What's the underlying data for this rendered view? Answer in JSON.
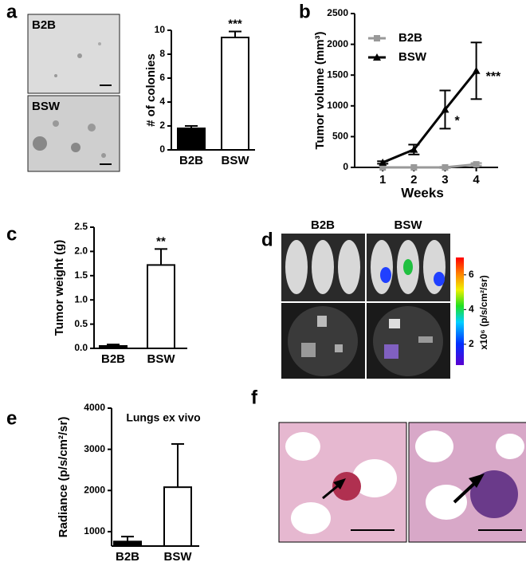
{
  "panel_labels": [
    "a",
    "b",
    "c",
    "d",
    "e",
    "f"
  ],
  "panel_a_images": [
    "B2B",
    "BSW"
  ],
  "panel_d": {
    "columns": [
      "B2B",
      "BSW"
    ],
    "colorbar": {
      "label": "x10⁶ (p/s/cm²/sr)",
      "lim": [
        0.8,
        7
      ],
      "ticks": [
        2,
        4,
        6
      ]
    }
  },
  "chart_data": [
    {
      "type": "bar",
      "ylabel": "# of colonies",
      "categories": [
        "B2B",
        "BSW"
      ],
      "values": [
        1.8,
        9.4
      ],
      "errors": [
        0.2,
        0.5
      ],
      "colors": [
        "#000000",
        "#ffffff"
      ],
      "significance": [
        null,
        "***"
      ],
      "ylim": [
        0,
        10
      ],
      "yticks": [
        0,
        2,
        4,
        6,
        8,
        10
      ]
    },
    {
      "type": "line",
      "ylabel": "Tumor volume (mm³)",
      "xlabel": "Weeks",
      "x": [
        1,
        2,
        3,
        4
      ],
      "xlim": [
        0.1,
        4.7
      ],
      "xticks": [
        1,
        2,
        3,
        4
      ],
      "ylim": [
        0,
        2500
      ],
      "yticks": [
        0,
        500,
        1000,
        1500,
        2000,
        2500
      ],
      "legend": "upper left",
      "series": [
        {
          "name": "B2B",
          "color": "#999999",
          "marker": "square",
          "values": [
            0,
            0,
            0,
            50
          ],
          "errors": [
            0,
            0,
            10,
            20
          ],
          "significance": [
            null,
            null,
            null,
            null
          ]
        },
        {
          "name": "BSW",
          "color": "#000000",
          "marker": "triangle",
          "values": [
            80,
            290,
            940,
            1570
          ],
          "errors": [
            20,
            80,
            310,
            460
          ],
          "significance": [
            null,
            null,
            "*",
            "***"
          ]
        }
      ]
    },
    {
      "type": "bar",
      "ylabel": "Tumor weight (g)",
      "categories": [
        "B2B",
        "BSW"
      ],
      "values": [
        0.05,
        1.72
      ],
      "errors": [
        0.03,
        0.33
      ],
      "colors": [
        "#000000",
        "#ffffff"
      ],
      "significance": [
        null,
        "**"
      ],
      "ylim": [
        0,
        2.5
      ],
      "yticks": [
        {
          "value": 0,
          "label": "0.0"
        },
        0.5,
        {
          "value": 1,
          "label": "1.0"
        },
        1.5,
        {
          "value": 2,
          "label": "2.0"
        },
        2.5
      ]
    },
    {
      "type": "bar",
      "title": "Lungs ex vivo",
      "ylabel": "Radiance (p/s/cm²/sr)",
      "categories": [
        "B2B",
        "BSW"
      ],
      "values": [
        760,
        2080
      ],
      "errors": [
        120,
        1050
      ],
      "colors": [
        "#000000",
        "#ffffff"
      ],
      "significance": [
        null,
        null
      ],
      "ylim": [
        650,
        4000
      ],
      "yticks": [
        1000,
        2000,
        3000,
        4000
      ]
    }
  ]
}
